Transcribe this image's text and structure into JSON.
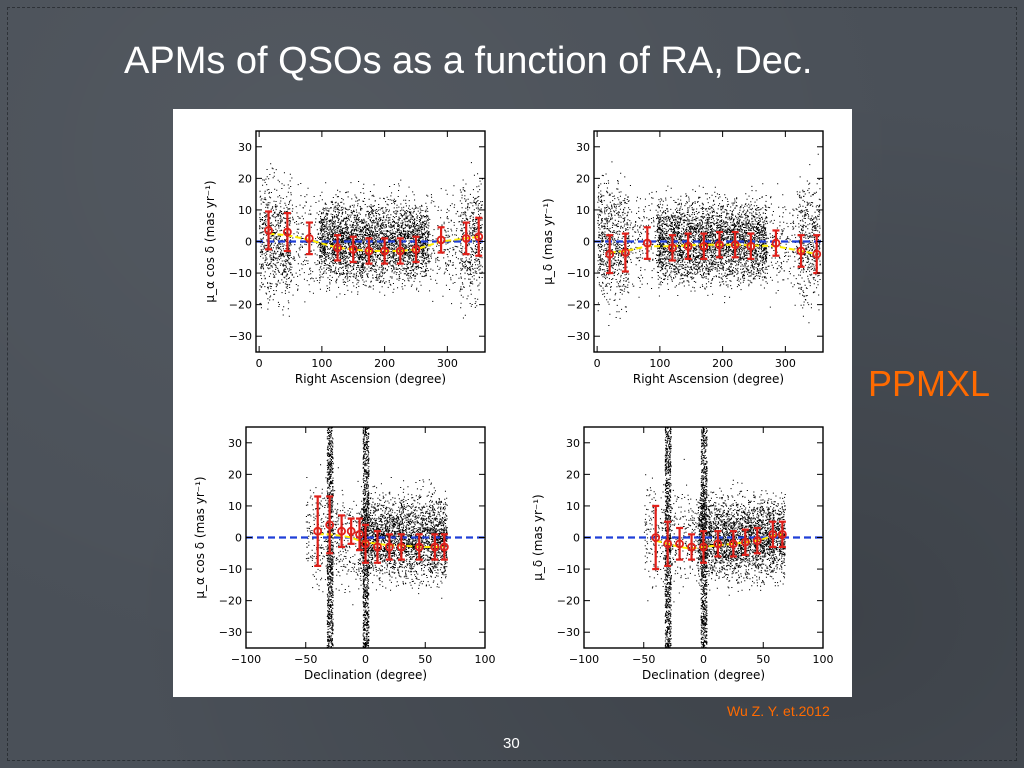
{
  "slide": {
    "title": "APMs of QSOs as a function of RA, Dec.",
    "side_label": "PPMXL",
    "citation": "Wu Z. Y. et.2012",
    "page_number": "30"
  },
  "colors": {
    "background": "#4a5058",
    "side_label": "#ff6a00",
    "points": "#000000",
    "errorbar": "#e0201a",
    "fit": "#ffee00",
    "zero_line": "#1f3fd8"
  },
  "chart_data": [
    {
      "type": "scatter",
      "panel": "top-left",
      "xlabel": "Right Ascension (degree)",
      "ylabel": "μ_α cos δ (mas yr⁻¹)",
      "xlim": [
        -5,
        360
      ],
      "ylim": [
        -35,
        35
      ],
      "xticks": [
        "0",
        "100",
        "200",
        "300"
      ],
      "yticks": [
        "30",
        "20",
        "10",
        "0",
        "−10",
        "−20",
        "−30"
      ],
      "zero_line": true,
      "binned_means": {
        "x": [
          15,
          45,
          80,
          125,
          150,
          175,
          200,
          225,
          250,
          290,
          330,
          350
        ],
        "y": [
          3.5,
          3,
          1,
          -2,
          -2.5,
          -3,
          -3,
          -3,
          -2.5,
          0.5,
          1,
          1.5
        ],
        "err": [
          6,
          6,
          5,
          4,
          4,
          4,
          4,
          4,
          4,
          4,
          5,
          6
        ]
      },
      "fit_y": [
        2.5,
        2,
        0.5,
        -2,
        -2.5,
        -3,
        -3,
        -3,
        -2.5,
        0,
        1,
        1.5
      ]
    },
    {
      "type": "scatter",
      "panel": "top-right",
      "xlabel": "Right Ascension (degree)",
      "ylabel": "μ_δ (mas yr⁻¹)",
      "xlim": [
        -5,
        360
      ],
      "ylim": [
        -35,
        35
      ],
      "xticks": [
        "0",
        "100",
        "200",
        "300"
      ],
      "yticks": [
        "30",
        "20",
        "10",
        "0",
        "−10",
        "−20",
        "−30"
      ],
      "zero_line": true,
      "binned_means": {
        "x": [
          20,
          45,
          80,
          120,
          145,
          170,
          195,
          220,
          245,
          285,
          325,
          350
        ],
        "y": [
          -4,
          -3.5,
          -0.5,
          -2,
          -1.5,
          -1.5,
          -1,
          -1,
          -1.5,
          -0.5,
          -3,
          -4
        ],
        "err": [
          6,
          6,
          5,
          4,
          4,
          4,
          4,
          4,
          4,
          4,
          5,
          6
        ]
      },
      "fit_y": [
        -3.5,
        -3,
        -1.5,
        -1.5,
        -1.2,
        -1,
        -1,
        -1,
        -1.2,
        -1.5,
        -3,
        -4
      ]
    },
    {
      "type": "scatter",
      "panel": "bottom-left",
      "xlabel": "Declination (degree)",
      "ylabel": "μ_α cos δ (mas yr⁻¹)",
      "xlim": [
        -100,
        100
      ],
      "ylim": [
        -35,
        35
      ],
      "xticks": [
        "−100",
        "−50",
        "0",
        "50",
        "100"
      ],
      "yticks": [
        "30",
        "20",
        "10",
        "0",
        "−10",
        "−20",
        "−30"
      ],
      "zero_line": true,
      "binned_means": {
        "x": [
          -40,
          -30,
          -20,
          -12,
          -5,
          0,
          10,
          20,
          30,
          45,
          58,
          66
        ],
        "y": [
          2,
          4,
          2,
          2,
          1,
          -2,
          -3,
          -3,
          -3,
          -3,
          -3,
          -3
        ],
        "err": [
          11,
          9,
          5,
          4,
          5,
          6,
          5,
          4,
          4,
          4,
          4,
          4
        ]
      },
      "fit_y": [
        1,
        1,
        0.5,
        0,
        -1,
        -1.5,
        -2,
        -2.5,
        -2.5,
        -3,
        -3,
        -3
      ]
    },
    {
      "type": "scatter",
      "panel": "bottom-right",
      "xlabel": "Declination (degree)",
      "ylabel": "μ_δ (mas yr⁻¹)",
      "xlim": [
        -100,
        100
      ],
      "ylim": [
        -35,
        35
      ],
      "xticks": [
        "−100",
        "−50",
        "0",
        "50",
        "100"
      ],
      "yticks": [
        "30",
        "20",
        "10",
        "0",
        "−10",
        "−20",
        "−30"
      ],
      "zero_line": true,
      "binned_means": {
        "x": [
          -40,
          -30,
          -20,
          -10,
          0,
          12,
          25,
          35,
          45,
          58,
          66
        ],
        "y": [
          0,
          -2,
          -2,
          -3,
          -3,
          -2,
          -2,
          -1.5,
          -1,
          1,
          1
        ],
        "err": [
          10,
          7,
          5,
          4,
          5,
          4,
          4,
          4,
          4,
          4,
          4
        ]
      },
      "fit_y": [
        -1,
        -2,
        -3,
        -3.5,
        -3,
        -2.5,
        -2,
        -1.5,
        -1,
        0.5,
        1
      ]
    }
  ]
}
